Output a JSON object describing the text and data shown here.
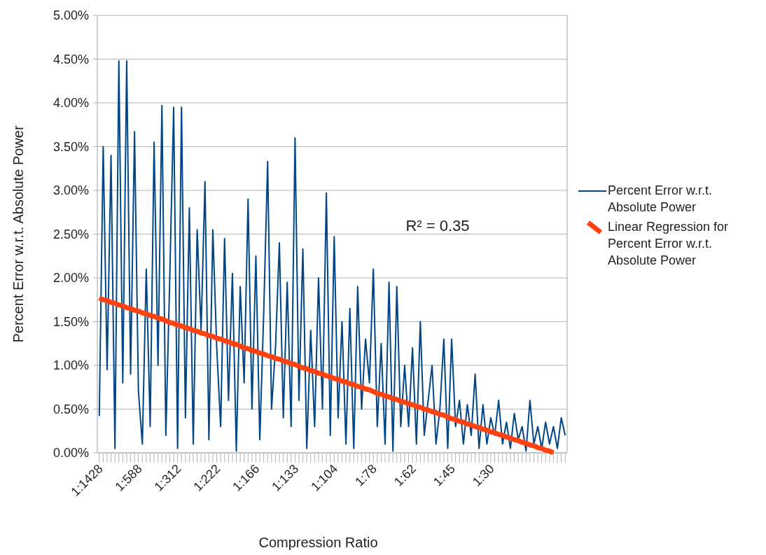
{
  "chart_data": {
    "type": "line",
    "xlabel": "Compression Ratio",
    "ylabel": "Percent Error w.r.t. Absolute Power",
    "categories": [
      "1:1428",
      null,
      null,
      null,
      null,
      null,
      null,
      null,
      null,
      null,
      "1:588",
      null,
      null,
      null,
      null,
      null,
      null,
      null,
      null,
      null,
      "1:312",
      null,
      null,
      null,
      null,
      null,
      null,
      null,
      null,
      null,
      "1:222",
      null,
      null,
      null,
      null,
      null,
      null,
      null,
      null,
      null,
      "1:166",
      null,
      null,
      null,
      null,
      null,
      null,
      null,
      null,
      null,
      "1:133",
      null,
      null,
      null,
      null,
      null,
      null,
      null,
      null,
      null,
      "1:104",
      null,
      null,
      null,
      null,
      null,
      null,
      null,
      null,
      null,
      "1:78",
      null,
      null,
      null,
      null,
      null,
      null,
      null,
      null,
      null,
      "1:62",
      null,
      null,
      null,
      null,
      null,
      null,
      null,
      null,
      null,
      "1:45",
      null,
      null,
      null,
      null,
      null,
      null,
      null,
      null,
      null,
      "1:30",
      null,
      null,
      null,
      null,
      null,
      null,
      null,
      null,
      null,
      null,
      null,
      null,
      null,
      null,
      null,
      null,
      null,
      null,
      null
    ],
    "series": [
      {
        "name": "Percent Error w.r.t. Absolute Power",
        "color": "#004586",
        "values": [
          0.42,
          3.5,
          0.95,
          3.4,
          0.05,
          4.48,
          0.8,
          4.48,
          0.9,
          3.67,
          0.7,
          0.1,
          2.1,
          0.3,
          3.55,
          1.0,
          3.97,
          0.2,
          2.0,
          3.95,
          0.05,
          3.95,
          0.4,
          2.8,
          0.1,
          2.55,
          1.4,
          3.1,
          0.15,
          2.55,
          1.2,
          0.3,
          2.45,
          0.6,
          2.05,
          0.02,
          1.9,
          0.8,
          2.9,
          0.5,
          2.25,
          0.15,
          1.6,
          3.33,
          0.5,
          1.2,
          2.4,
          0.4,
          1.95,
          0.3,
          3.6,
          0.6,
          2.33,
          0.05,
          1.4,
          0.3,
          2.0,
          0.5,
          2.97,
          0.2,
          2.47,
          0.4,
          1.5,
          0.1,
          1.65,
          0.05,
          1.9,
          0.5,
          1.3,
          0.8,
          2.1,
          0.3,
          1.25,
          0.1,
          1.95,
          0.02,
          1.9,
          0.3,
          1.0,
          0.3,
          1.2,
          0.1,
          1.5,
          0.2,
          0.6,
          1.0,
          0.1,
          0.5,
          1.3,
          0.05,
          1.3,
          0.3,
          0.6,
          0.1,
          0.55,
          0.2,
          0.9,
          0.05,
          0.55,
          0.1,
          0.4,
          0.2,
          0.6,
          0.1,
          0.35,
          0.05,
          0.45,
          0.15,
          0.3,
          0.02,
          0.6,
          0.1,
          0.3,
          0.05,
          0.35,
          0.1,
          0.3,
          0.05,
          0.4,
          0.2
        ]
      },
      {
        "name": "Linear Regression for Percent Error w.r.t. Absolute Power",
        "color": "#ff420e",
        "values": [
          1.77,
          1.75,
          1.74,
          1.72,
          1.71,
          1.69,
          1.68,
          1.66,
          1.65,
          1.63,
          1.62,
          1.6,
          1.59,
          1.57,
          1.56,
          1.54,
          1.53,
          1.51,
          1.49,
          1.48,
          1.46,
          1.45,
          1.43,
          1.42,
          1.4,
          1.39,
          1.37,
          1.36,
          1.34,
          1.33,
          1.31,
          1.3,
          1.28,
          1.27,
          1.25,
          1.24,
          1.22,
          1.2,
          1.19,
          1.17,
          1.16,
          1.14,
          1.13,
          1.11,
          1.1,
          1.08,
          1.07,
          1.05,
          1.04,
          1.02,
          1.01,
          0.99,
          0.97,
          0.96,
          0.94,
          0.93,
          0.91,
          0.9,
          0.88,
          0.87,
          0.85,
          0.84,
          0.82,
          0.81,
          0.79,
          0.78,
          0.76,
          0.75,
          0.73,
          0.72,
          0.7,
          0.68,
          0.67,
          0.65,
          0.64,
          0.62,
          0.61,
          0.59,
          0.58,
          0.56,
          0.55,
          0.53,
          0.52,
          0.5,
          0.49,
          0.47,
          0.46,
          0.44,
          0.43,
          0.41,
          0.39,
          0.38,
          0.36,
          0.35,
          0.33,
          0.32,
          0.3,
          0.29,
          0.27,
          0.26,
          0.24,
          0.23,
          0.21,
          0.2,
          0.18,
          0.17,
          0.15,
          0.14,
          0.12,
          0.11,
          0.09,
          0.08,
          0.06,
          0.05,
          0.03,
          0.02,
          0.0,
          null,
          null,
          null
        ]
      }
    ],
    "ylim": [
      0,
      5
    ],
    "yticks": [
      {
        "value": 0,
        "label": "0.00%"
      },
      {
        "value": 0.5,
        "label": "0.50%"
      },
      {
        "value": 1,
        "label": "1.00%"
      },
      {
        "value": 1.5,
        "label": "1.50%"
      },
      {
        "value": 2,
        "label": "2.00%"
      },
      {
        "value": 2.5,
        "label": "2.50%"
      },
      {
        "value": 3,
        "label": "3.00%"
      },
      {
        "value": 3.5,
        "label": "3.50%"
      },
      {
        "value": 4,
        "label": "4.00%"
      },
      {
        "value": 4.5,
        "label": "4.50%"
      },
      {
        "value": 5,
        "label": "5.00%"
      }
    ],
    "grid": "y",
    "legend": "right",
    "marker": "none",
    "line_style": "solid",
    "annotations": [
      "R² = 0.35"
    ]
  }
}
